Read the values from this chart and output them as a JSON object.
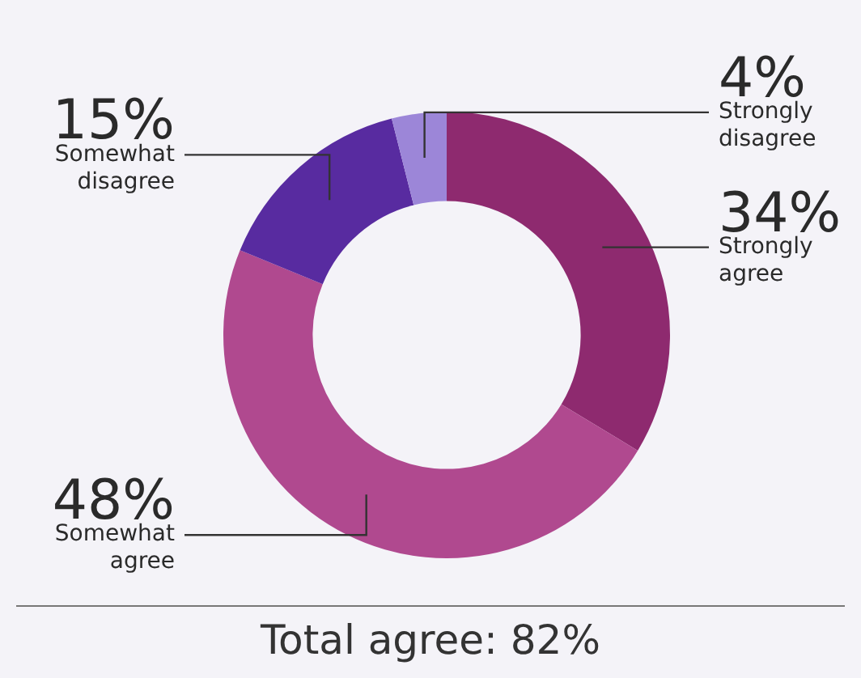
{
  "chart_data": {
    "type": "donut",
    "categories": [
      "Strongly agree",
      "Somewhat agree",
      "Somewhat disagree",
      "Strongly disagree"
    ],
    "values": [
      34,
      48,
      15,
      4
    ],
    "value_labels": [
      "34%",
      "48%",
      "15%",
      "4%"
    ],
    "colors": [
      "#8e2a6f",
      "#b0498f",
      "#582ba0",
      "#9c86d8"
    ],
    "annotations": [
      "Total agree: 82%"
    ],
    "legend": false
  }
}
